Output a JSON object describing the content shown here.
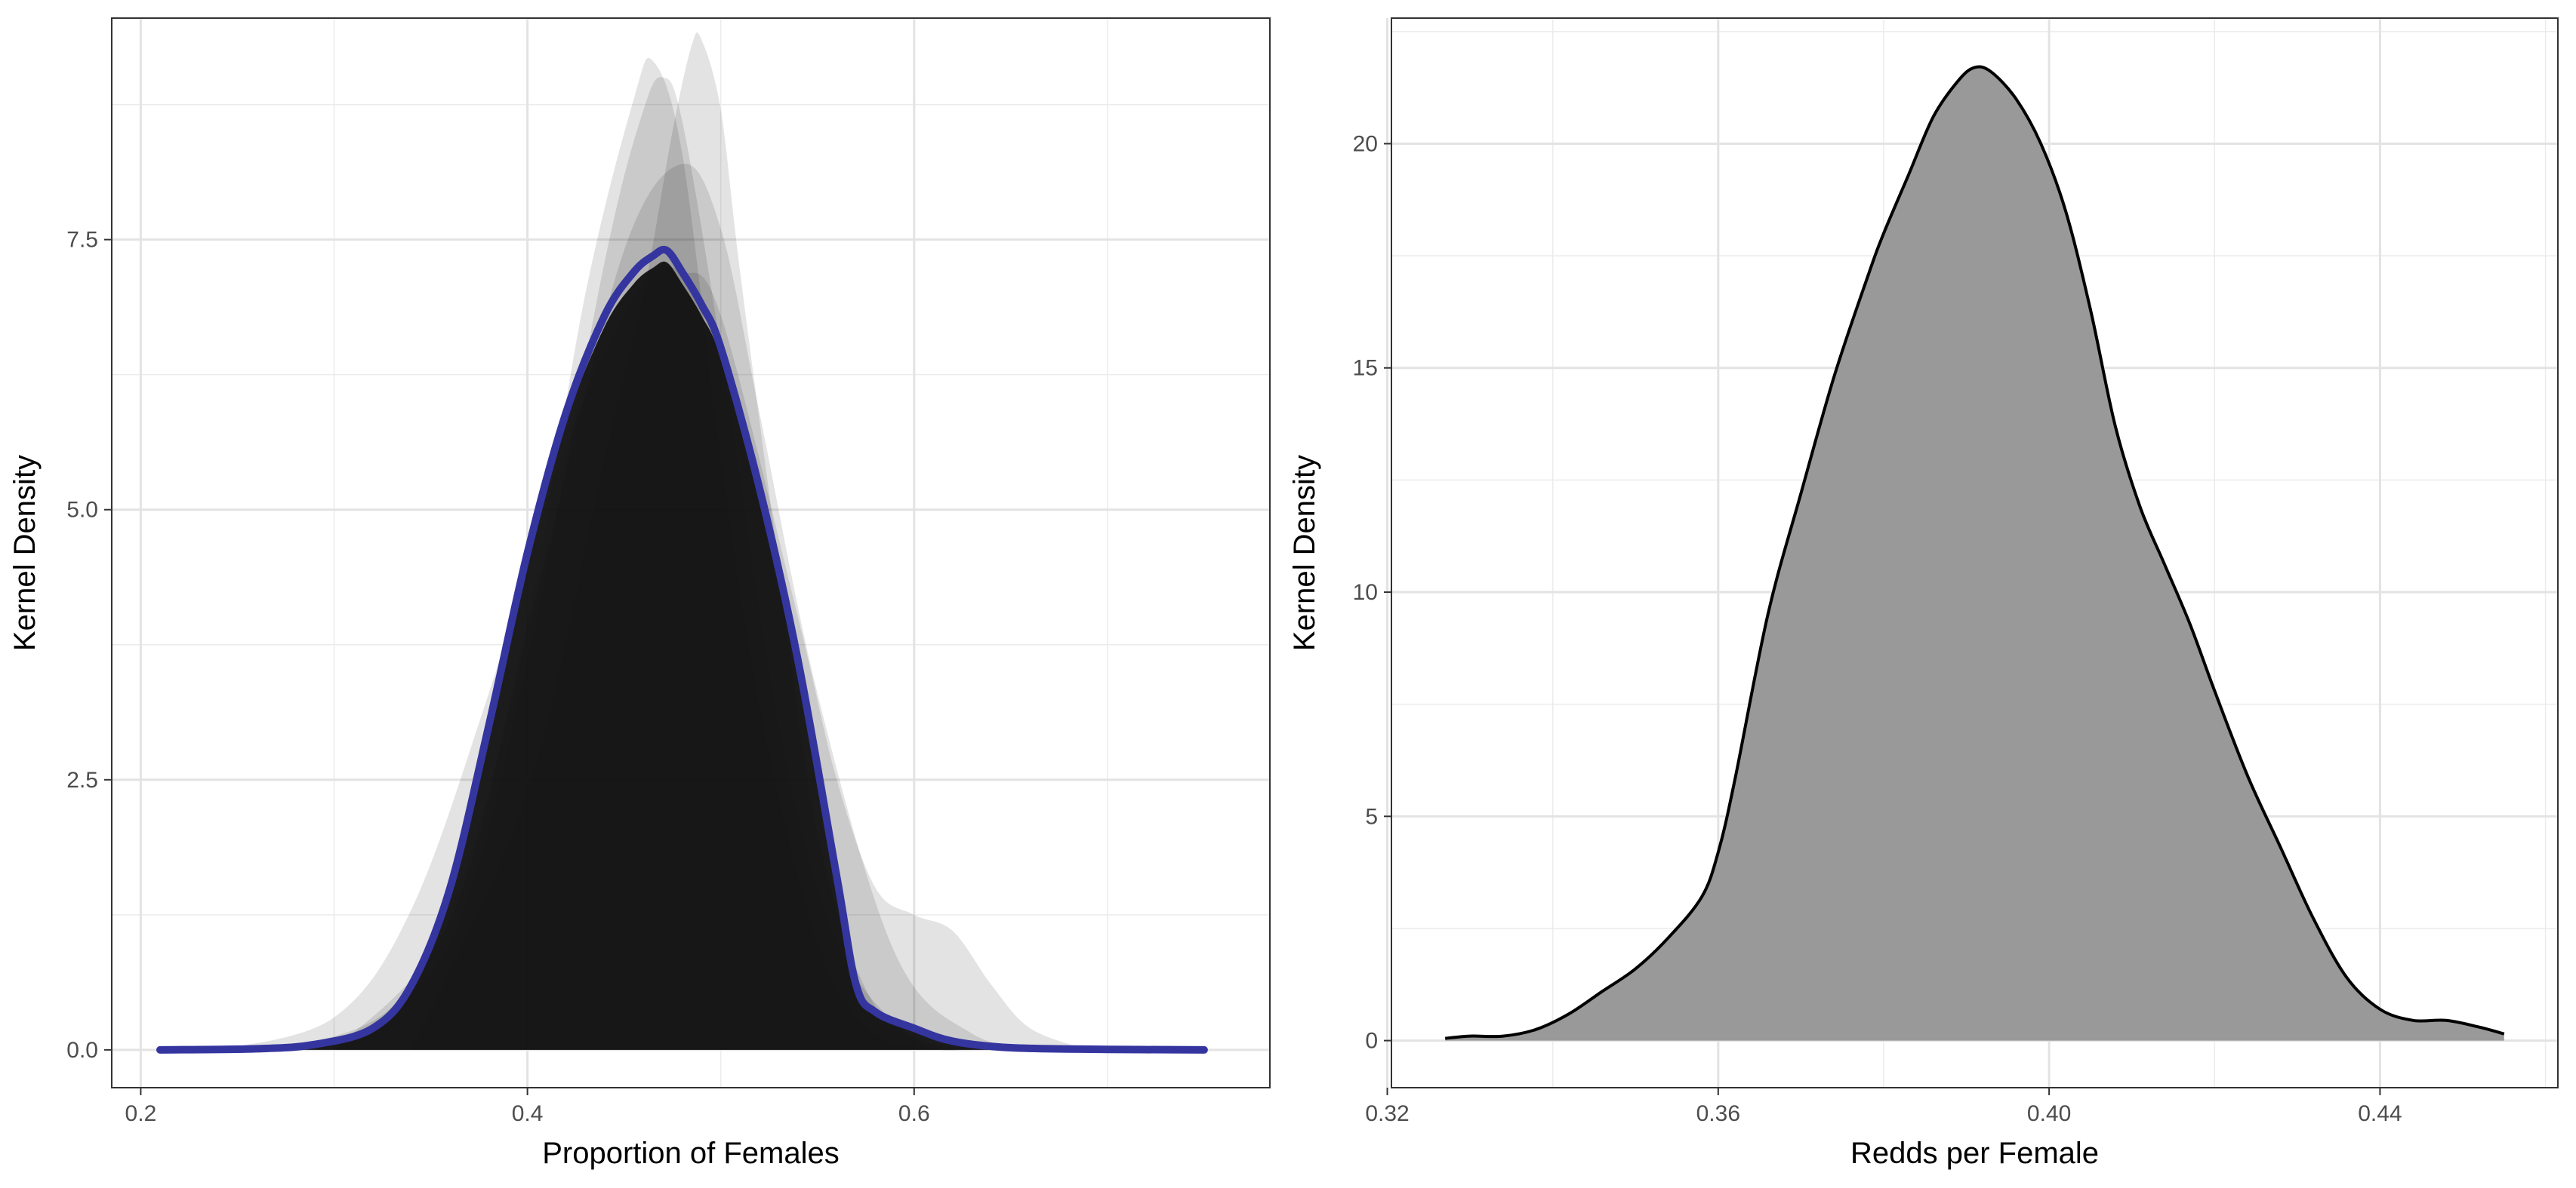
{
  "chart_data": [
    {
      "type": "area",
      "title": "",
      "xlabel": "Proportion of Females",
      "ylabel": "Kernel Density",
      "xlim": [
        0.185,
        0.784
      ],
      "ylim": [
        -0.35,
        9.55
      ],
      "x_ticks": [
        0.2,
        0.4,
        0.6
      ],
      "x_tick_labels": [
        "0.2",
        "0.4",
        "0.6"
      ],
      "y_ticks": [
        0,
        2.5,
        5,
        7.5
      ],
      "y_tick_labels": [
        "0.0",
        "2.5",
        "5.0",
        "7.5"
      ],
      "grid": true,
      "legend": "none",
      "colors": {
        "mean_line": "#3535a0",
        "draw_fill": "#000000",
        "band_fill": "#111111"
      },
      "series": [
        {
          "role": "mean-density",
          "x": [
            0.21,
            0.26,
            0.29,
            0.32,
            0.34,
            0.36,
            0.38,
            0.4,
            0.42,
            0.44,
            0.455,
            0.465,
            0.472,
            0.48,
            0.49,
            0.5,
            0.52,
            0.54,
            0.56,
            0.57,
            0.58,
            0.6,
            0.62,
            0.65,
            0.7,
            0.75
          ],
          "y": [
            0,
            0.01,
            0.05,
            0.2,
            0.6,
            1.5,
            3.0,
            4.6,
            5.9,
            6.8,
            7.2,
            7.35,
            7.4,
            7.2,
            6.9,
            6.5,
            5.2,
            3.6,
            1.6,
            0.6,
            0.35,
            0.2,
            0.08,
            0.02,
            0.005,
            0
          ]
        },
        {
          "role": "posterior-draw",
          "x": [
            0.3,
            0.36,
            0.4,
            0.43,
            0.455,
            0.465,
            0.48,
            0.5,
            0.52,
            0.55,
            0.58,
            0.62
          ],
          "y": [
            0,
            1.2,
            4.0,
            7.0,
            8.8,
            9.15,
            8.3,
            5.5,
            3.2,
            1.0,
            0.15,
            0
          ]
        },
        {
          "role": "posterior-draw",
          "x": [
            0.3,
            0.36,
            0.4,
            0.44,
            0.46,
            0.47,
            0.48,
            0.5,
            0.53,
            0.56,
            0.6,
            0.63
          ],
          "y": [
            0,
            1.0,
            3.6,
            7.3,
            8.7,
            9.0,
            8.6,
            6.5,
            3.0,
            1.0,
            0.1,
            0
          ]
        },
        {
          "role": "posterior-draw",
          "x": [
            0.34,
            0.4,
            0.44,
            0.46,
            0.475,
            0.485,
            0.49,
            0.5,
            0.51,
            0.53,
            0.55,
            0.58,
            0.62
          ],
          "y": [
            0,
            2.4,
            5.5,
            7.0,
            8.5,
            9.3,
            9.35,
            8.7,
            7.2,
            4.5,
            2.0,
            0.4,
            0
          ]
        },
        {
          "role": "posterior-draw",
          "x": [
            0.24,
            0.3,
            0.34,
            0.38,
            0.42,
            0.46,
            0.48,
            0.5,
            0.54,
            0.56,
            0.58,
            0.6,
            0.62,
            0.64,
            0.66,
            0.69
          ],
          "y": [
            0,
            0.3,
            1.3,
            3.3,
            5.6,
            7.1,
            7.2,
            6.8,
            4.0,
            2.5,
            1.5,
            1.25,
            1.1,
            0.6,
            0.2,
            0
          ]
        },
        {
          "role": "posterior-draw",
          "x": [
            0.27,
            0.33,
            0.37,
            0.41,
            0.45,
            0.48,
            0.5,
            0.52,
            0.55,
            0.59,
            0.63,
            0.67
          ],
          "y": [
            0,
            0.4,
            1.8,
            4.6,
            7.4,
            8.2,
            7.6,
            5.9,
            3.3,
            0.9,
            0.15,
            0
          ]
        }
      ]
    },
    {
      "type": "area",
      "title": "",
      "xlabel": "Redds per Female",
      "ylabel": "Kernel Density",
      "xlim": [
        0.3205,
        0.4615
      ],
      "ylim": [
        -1.05,
        22.8
      ],
      "x_ticks": [
        0.32,
        0.36,
        0.4,
        0.44
      ],
      "x_tick_labels": [
        "0.32",
        "0.36",
        "0.40",
        "0.44"
      ],
      "y_ticks": [
        0,
        5,
        10,
        15,
        20
      ],
      "y_tick_labels": [
        "0",
        "5",
        "10",
        "15",
        "20"
      ],
      "grid": true,
      "legend": "none",
      "colors": {
        "fill": "#999999",
        "line": "#000000"
      },
      "x": [
        0.327,
        0.33,
        0.334,
        0.338,
        0.342,
        0.346,
        0.35,
        0.354,
        0.358,
        0.36,
        0.362,
        0.366,
        0.37,
        0.374,
        0.378,
        0.38,
        0.383,
        0.386,
        0.389,
        0.391,
        0.393,
        0.396,
        0.399,
        0.402,
        0.405,
        0.408,
        0.411,
        0.414,
        0.417,
        0.42,
        0.424,
        0.428,
        0.432,
        0.436,
        0.44,
        0.444,
        0.448,
        0.452,
        0.455
      ],
      "y": [
        0.05,
        0.1,
        0.1,
        0.25,
        0.6,
        1.1,
        1.6,
        2.3,
        3.2,
        4.2,
        5.8,
        9.5,
        12.2,
        14.8,
        17.0,
        18.0,
        19.3,
        20.6,
        21.4,
        21.7,
        21.6,
        21.0,
        20.0,
        18.5,
        16.3,
        13.7,
        11.9,
        10.6,
        9.3,
        7.8,
        5.9,
        4.3,
        2.7,
        1.4,
        0.7,
        0.45,
        0.45,
        0.3,
        0.15
      ]
    }
  ]
}
